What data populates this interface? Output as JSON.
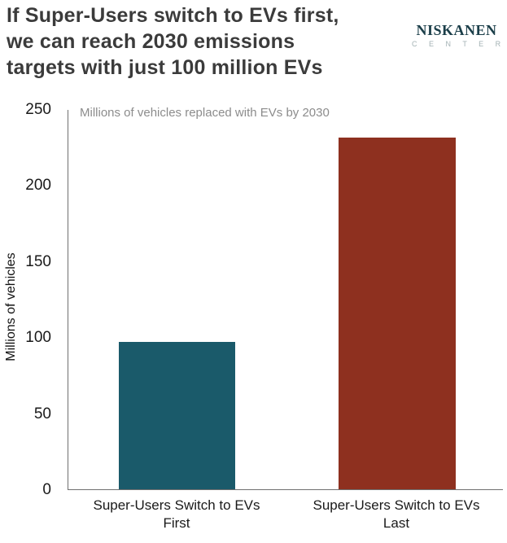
{
  "header": {
    "title_lines": [
      "If Super-Users switch to EVs first,",
      "we can reach 2030 emissions",
      "targets with just 100 million EVs"
    ],
    "logo": {
      "name": "NISKANEN",
      "subname": "C E N T E R"
    }
  },
  "chart_data": {
    "type": "bar",
    "title": "Millions of vehicles replaced with EVs by 2030",
    "categories": [
      "Super-Users Switch to EVs First",
      "Super-Users Switch to EVs Last"
    ],
    "category_lines": [
      {
        "line1": "Super-Users Switch to EVs",
        "line2": "First"
      },
      {
        "line1": "Super-Users Switch to EVs",
        "line2": "Last"
      }
    ],
    "values": [
      97,
      232
    ],
    "bar_colors": [
      "#1a5a6a",
      "#8e301f"
    ],
    "ylabel": "Millions of vehicles",
    "xlabel": "",
    "ylim": [
      0,
      250
    ],
    "yticks": [
      "0",
      "50",
      "100",
      "150",
      "200",
      "250"
    ],
    "grid": false,
    "legend": "none"
  },
  "colors": {
    "title_text": "#3b3b3b",
    "subtitle_text": "#8c8c8c",
    "axis_line": "#707070",
    "tick_text": "#1a1a1a",
    "bar_first": "#1a5a6a",
    "bar_last": "#8e301f",
    "logo_primary": "#1b3e49",
    "logo_secondary": "#a3b2b4"
  }
}
